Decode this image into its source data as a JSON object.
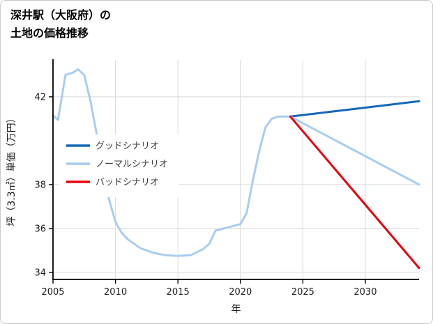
{
  "title": {
    "line1": "深井駅（大阪府）の",
    "line2": "土地の価格推移"
  },
  "chart_data": {
    "type": "line",
    "title": "深井駅（大阪府）の土地の価格推移",
    "xlabel": "年",
    "ylabel": "坪（3.3㎡）単価（万円）",
    "xlim": [
      2005,
      2034.3
    ],
    "ylim": [
      33.68,
      43.68
    ],
    "x_ticks": [
      2005,
      2010,
      2015,
      2020,
      2025,
      2030
    ],
    "y_ticks": [
      34,
      36,
      38,
      42
    ],
    "grid": "on",
    "grid_color": "#d9d9d9",
    "colors": {
      "good": "#1467b8",
      "normal": "#a9cdf0",
      "bad": "#e8000d"
    },
    "legend_position": "middle-left-inside",
    "series": [
      {
        "id": "history",
        "color": "#a9cdf0",
        "in_legend": false,
        "x": [
          2005,
          2005.4,
          2006,
          2006.6,
          2007,
          2007.5,
          2008,
          2008.5,
          2009,
          2009.5,
          2010,
          2010.5,
          2011,
          2012,
          2013,
          2014,
          2015,
          2016,
          2017,
          2017.5,
          2018,
          2019,
          2020,
          2020.5,
          2021,
          2021.5,
          2022,
          2022.5,
          2023,
          2024
        ],
        "values": [
          41.15,
          40.95,
          43.0,
          43.1,
          43.25,
          43.0,
          41.8,
          40.3,
          38.6,
          37.3,
          36.3,
          35.8,
          35.5,
          35.1,
          34.9,
          34.78,
          34.75,
          34.78,
          35.05,
          35.3,
          35.9,
          36.05,
          36.2,
          36.7,
          38.2,
          39.5,
          40.6,
          41.0,
          41.1,
          41.1
        ]
      },
      {
        "id": "good",
        "name": "グッドシナリオ",
        "color": "#1467b8",
        "in_legend": true,
        "x": [
          2024,
          2034.3
        ],
        "values": [
          41.1,
          41.8
        ]
      },
      {
        "id": "normal",
        "name": "ノーマルシナリオ",
        "color": "#a9cdf0",
        "in_legend": true,
        "x": [
          2024,
          2034.3
        ],
        "values": [
          41.1,
          38.0
        ]
      },
      {
        "id": "bad",
        "name": "バッドシナリオ",
        "color": "#e8000d",
        "in_legend": true,
        "x": [
          2024,
          2034.3
        ],
        "values": [
          41.1,
          34.2
        ]
      }
    ]
  }
}
